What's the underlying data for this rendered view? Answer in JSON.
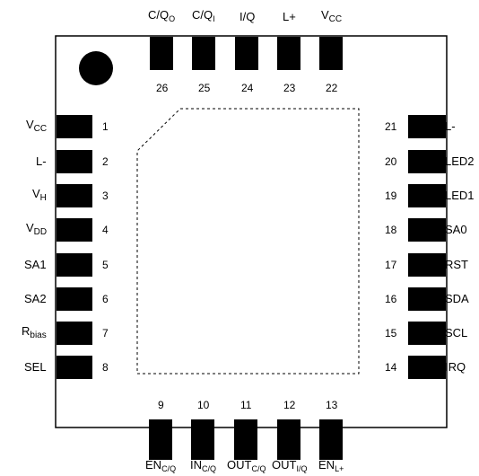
{
  "package": {
    "pins": {
      "top": [
        {
          "number": "26",
          "label": "C/Q",
          "sub": "O"
        },
        {
          "number": "25",
          "label": "C/Q",
          "sub": "I"
        },
        {
          "number": "24",
          "label": "I/Q",
          "sub": ""
        },
        {
          "number": "23",
          "label": "L+",
          "sub": ""
        },
        {
          "number": "22",
          "label": "V",
          "sub": "CC"
        }
      ],
      "left": [
        {
          "number": "1",
          "label": "V",
          "sub": "CC"
        },
        {
          "number": "2",
          "label": "L-",
          "sub": ""
        },
        {
          "number": "3",
          "label": "V",
          "sub": "H"
        },
        {
          "number": "4",
          "label": "V",
          "sub": "DD"
        },
        {
          "number": "5",
          "label": "SA1",
          "sub": ""
        },
        {
          "number": "6",
          "label": "SA2",
          "sub": ""
        },
        {
          "number": "7",
          "label": "R",
          "sub": "bias"
        },
        {
          "number": "8",
          "label": "SEL",
          "sub": ""
        }
      ],
      "right": [
        {
          "number": "21",
          "label": "L-",
          "sub": ""
        },
        {
          "number": "20",
          "label": "LED2",
          "sub": ""
        },
        {
          "number": "19",
          "label": "LED1",
          "sub": ""
        },
        {
          "number": "18",
          "label": "SA0",
          "sub": ""
        },
        {
          "number": "17",
          "label": "RST",
          "sub": ""
        },
        {
          "number": "16",
          "label": "SDA",
          "sub": ""
        },
        {
          "number": "15",
          "label": "SCL",
          "sub": ""
        },
        {
          "number": "14",
          "label": "IRQ",
          "sub": ""
        }
      ],
      "bottom": [
        {
          "number": "9",
          "label": "EN",
          "sub": "C/Q"
        },
        {
          "number": "10",
          "label": "IN",
          "sub": "C/Q"
        },
        {
          "number": "11",
          "label": "OUT",
          "sub": "C/Q"
        },
        {
          "number": "12",
          "label": "OUT",
          "sub": "I/Q"
        },
        {
          "number": "13",
          "label": "EN",
          "sub": "L+"
        }
      ]
    },
    "colors": {
      "pad": "#000000",
      "outline": "#000000",
      "background": "#ffffff"
    }
  }
}
